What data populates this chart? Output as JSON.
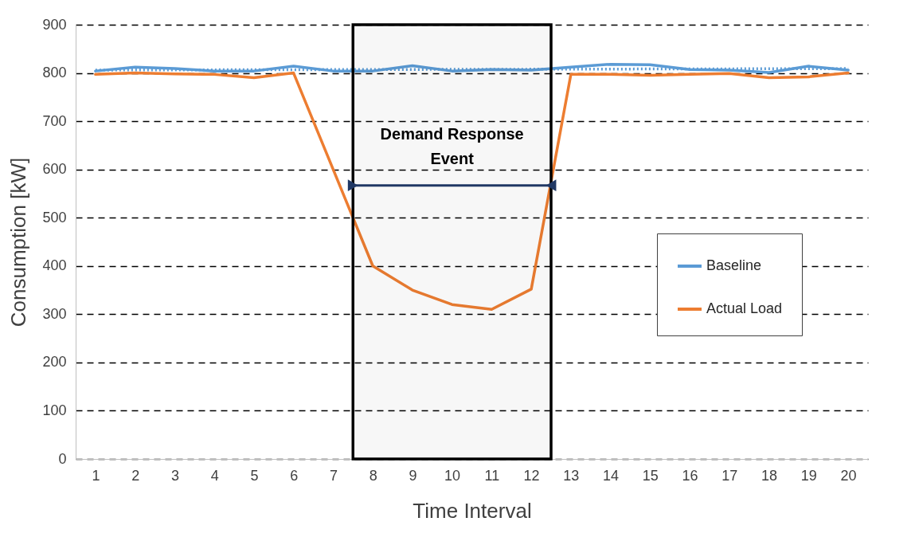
{
  "chart_data": {
    "type": "line",
    "xlabel": "Time Interval",
    "ylabel": "Consumption [kW]",
    "x": [
      1,
      2,
      3,
      4,
      5,
      6,
      7,
      8,
      9,
      10,
      11,
      12,
      13,
      14,
      15,
      16,
      17,
      18,
      19,
      20
    ],
    "series": [
      {
        "name": "Baseline",
        "color": "#5b9bd5",
        "values": [
          804,
          812,
          809,
          804,
          804,
          814,
          804,
          804,
          815,
          804,
          807,
          806,
          812,
          818,
          817,
          807,
          806,
          801,
          814,
          806
        ]
      },
      {
        "name": "Actual Load",
        "color": "#ed7d31",
        "values": [
          797,
          800,
          798,
          797,
          790,
          800,
          600,
          400,
          350,
          320,
          310,
          352,
          797,
          797,
          795,
          797,
          799,
          790,
          792,
          800
        ]
      },
      {
        "type": "line",
        "color": "#5b9bd5",
        "x": [
          1,
          20
        ],
        "values": [
          806,
          809
        ],
        "line_style": "dotted"
      }
    ],
    "xlim": [
      0.5,
      20.5
    ],
    "xticks": [
      1,
      2,
      3,
      4,
      5,
      6,
      7,
      8,
      9,
      10,
      11,
      12,
      13,
      14,
      15,
      16,
      17,
      18,
      19,
      20
    ],
    "ylim": [
      0,
      900
    ],
    "yticks": [
      0,
      100,
      200,
      300,
      400,
      500,
      600,
      700,
      800,
      900
    ],
    "grid": "y",
    "legend": "right",
    "bands": [
      {
        "axis": "x",
        "from": 7.5,
        "to": 12.5,
        "label": "Demand Response Event",
        "color": "#000000"
      }
    ]
  }
}
